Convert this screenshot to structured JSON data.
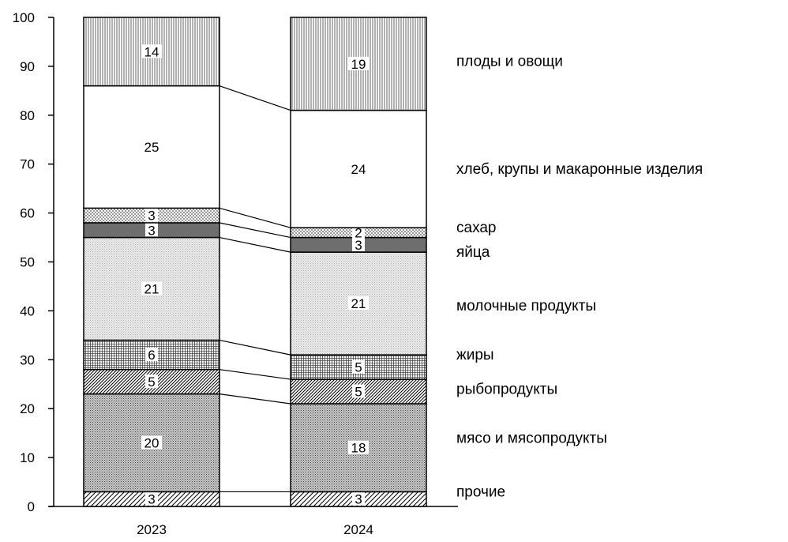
{
  "chart_data": {
    "type": "bar",
    "stacked": true,
    "categories": [
      "2023",
      "2024"
    ],
    "ylim": [
      0,
      100
    ],
    "yticks": [
      0,
      10,
      20,
      30,
      40,
      50,
      60,
      70,
      80,
      90,
      100
    ],
    "grid": false,
    "legend_position": "right",
    "series": [
      {
        "name": "прочие",
        "values": [
          3,
          3
        ],
        "pattern": "diag-light"
      },
      {
        "name": "мясо и мясопродукты",
        "values": [
          20,
          18
        ],
        "pattern": "dots-dense"
      },
      {
        "name": "рыбопродукты",
        "values": [
          5,
          5
        ],
        "pattern": "diag-dense"
      },
      {
        "name": "жиры",
        "values": [
          6,
          5
        ],
        "pattern": "grid"
      },
      {
        "name": "молочные продукты",
        "values": [
          21,
          21
        ],
        "pattern": "dots-light"
      },
      {
        "name": "яйца",
        "values": [
          3,
          3
        ],
        "pattern": "dark"
      },
      {
        "name": "сахар",
        "values": [
          3,
          2
        ],
        "pattern": "checker"
      },
      {
        "name": "хлеб, крупы и макаронные изделия",
        "values": [
          25,
          24
        ],
        "pattern": "white"
      },
      {
        "name": "плоды и овощи",
        "values": [
          14,
          19
        ],
        "pattern": "vlines"
      }
    ]
  }
}
